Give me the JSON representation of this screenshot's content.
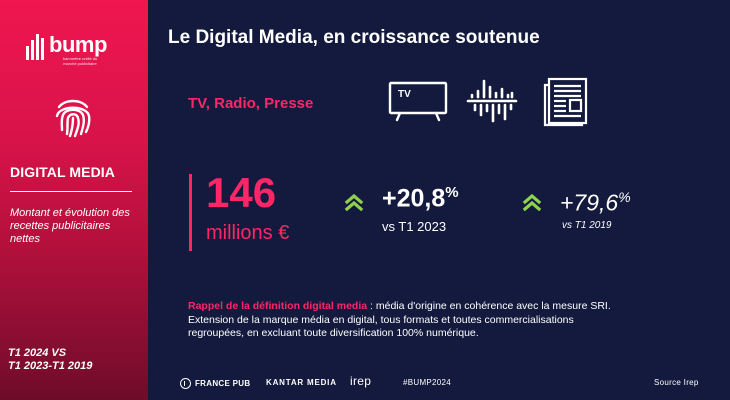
{
  "sidebar": {
    "logo_text": "bump",
    "logo_subtitle": "baromètre unifié du marché publicitaire",
    "section_title": "DIGITAL MEDIA",
    "description": "Montant et évolution des recettes publicitaires nettes",
    "period": "T1 2024 VS\nT1 2023-T1 2019"
  },
  "main": {
    "title": "Le Digital Media, en croissance soutenue",
    "media_label": "TV, Radio, Presse",
    "icons": [
      "tv-icon",
      "radio-waveform-icon",
      "newspaper-icon"
    ],
    "tv_icon_text": "TV"
  },
  "kpi": {
    "value": "146",
    "unit": "millions €"
  },
  "growth": [
    {
      "value": "+20,8",
      "suffix": "%",
      "comparison": "vs T1 2023"
    },
    {
      "value": "+79,6",
      "suffix": "%",
      "comparison": "vs T1 2019"
    }
  ],
  "definition": {
    "heading": "Rappel de la définition digital media",
    "separator": " : ",
    "body": "média d'origine en cohérence avec la mesure SRI. Extension de la marque média en digital, tous formats et toutes commercialisations regroupées, en excluant toute diversification 100% numérique."
  },
  "footer": {
    "france_pub": "FRANCE PUB",
    "kantar": "KANTAR MEDIA",
    "irep": "irep",
    "hashtag": "#BUMP2024",
    "source": "Source Irep"
  },
  "colors": {
    "accent_pink": "#ff2667",
    "sidebar_top": "#f0164f",
    "background_navy": "#131a3d",
    "chevron_green": "#8fd14f"
  }
}
